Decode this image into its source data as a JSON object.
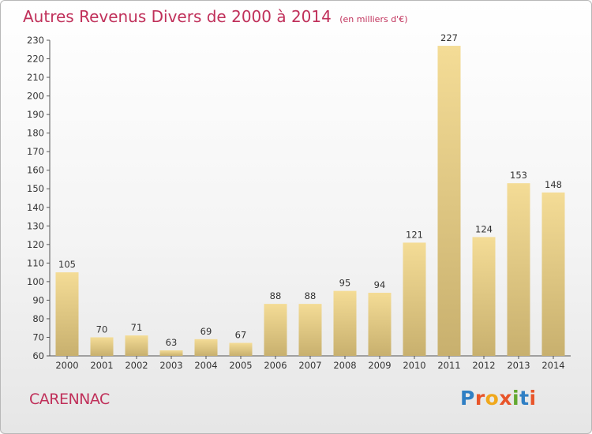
{
  "header": {
    "title": "Autres Revenus Divers de 2000 à 2014",
    "subtitle": "(en milliers d'€)"
  },
  "footer": {
    "city": "CARENNAC",
    "brand": "Proxiti"
  },
  "colors": {
    "title": "#c0305a",
    "bar_light": "#f4dc96",
    "bar_dark": "#c8b06e"
  },
  "chart_data": {
    "type": "bar",
    "categories": [
      "2000",
      "2001",
      "2002",
      "2003",
      "2004",
      "2005",
      "2006",
      "2007",
      "2008",
      "2009",
      "2010",
      "2011",
      "2012",
      "2013",
      "2014"
    ],
    "values": [
      105,
      70,
      71,
      63,
      69,
      67,
      88,
      88,
      95,
      94,
      121,
      227,
      124,
      153,
      148
    ],
    "ylim": [
      60,
      230
    ],
    "yticks": [
      60,
      70,
      80,
      90,
      100,
      110,
      120,
      130,
      140,
      150,
      160,
      170,
      180,
      190,
      200,
      210,
      220,
      230
    ],
    "grid": false,
    "data_labels": true
  }
}
